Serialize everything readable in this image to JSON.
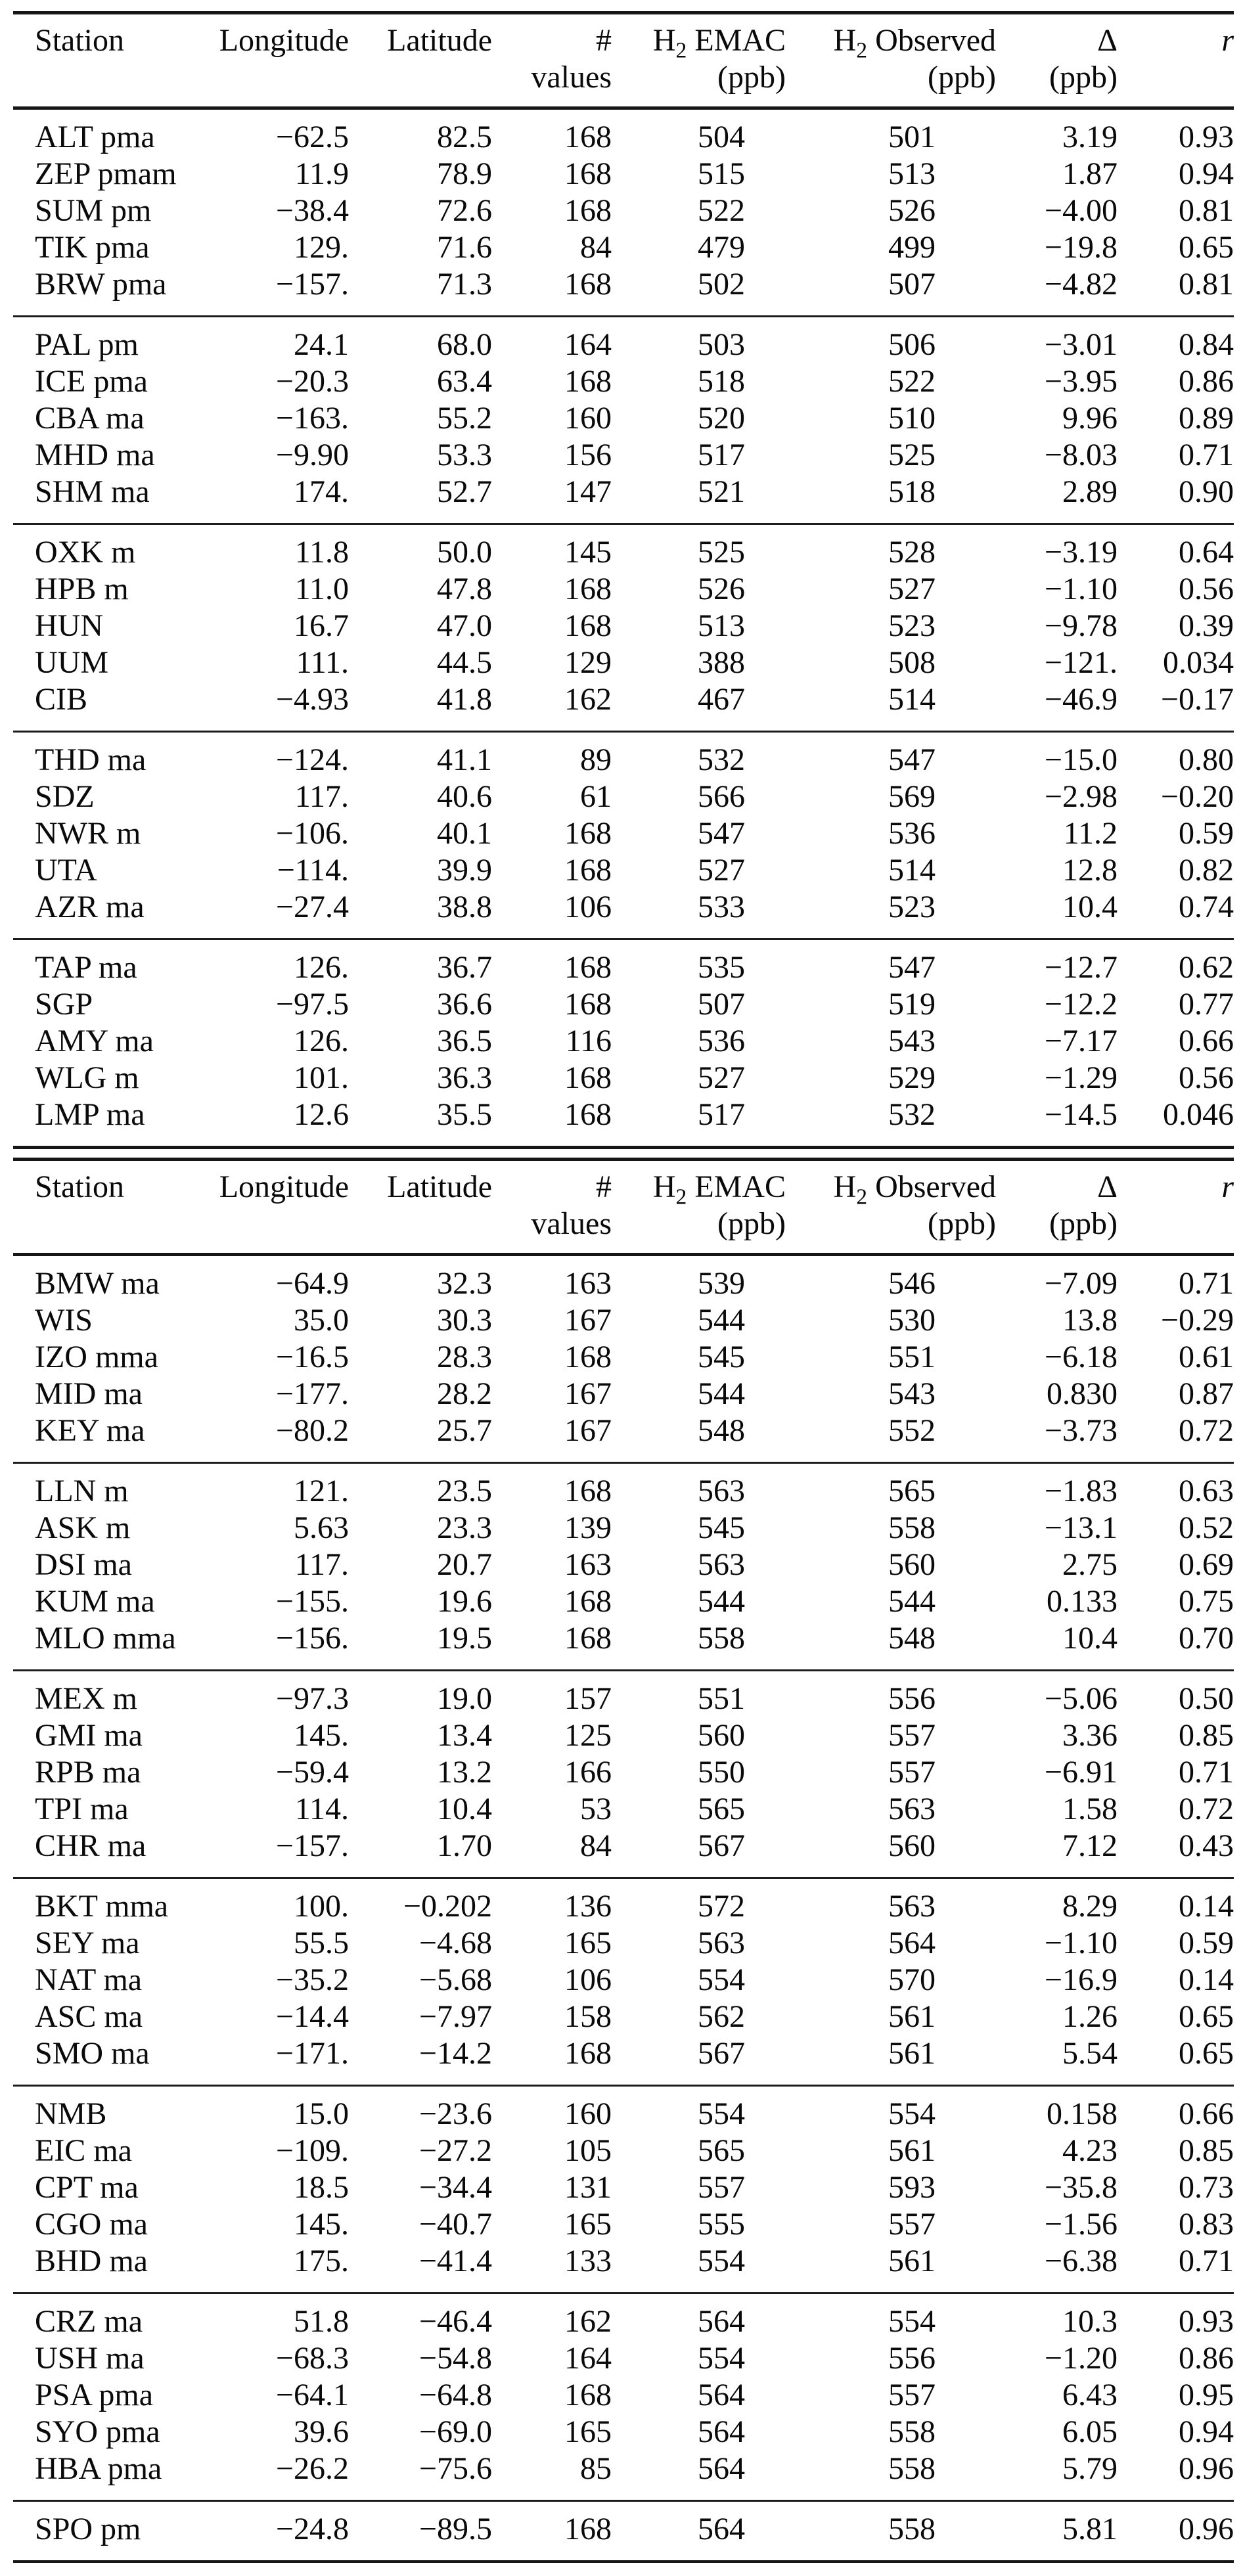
{
  "table": {
    "header": {
      "station": "Station",
      "longitude": "Longitude",
      "latitude": "Latitude",
      "values_hash": "#",
      "values_word": "values",
      "h2": "H",
      "h2_sub": "2",
      "emac": " EMAC",
      "observed": " Observed",
      "ppb": "(ppb)",
      "delta": "Δ",
      "r": "r"
    },
    "part1": {
      "groups": [
        [
          [
            "ALT pma",
            "−62.5",
            "82.5",
            "168",
            "504",
            "501",
            "3.19",
            "0.93"
          ],
          [
            "ZEP pmam",
            "11.9",
            "78.9",
            "168",
            "515",
            "513",
            "1.87",
            "0.94"
          ],
          [
            "SUM pm",
            "−38.4",
            "72.6",
            "168",
            "522",
            "526",
            "−4.00",
            "0.81"
          ],
          [
            "TIK pma",
            "129.",
            "71.6",
            "84",
            "479",
            "499",
            "−19.8",
            "0.65"
          ],
          [
            "BRW pma",
            "−157.",
            "71.3",
            "168",
            "502",
            "507",
            "−4.82",
            "0.81"
          ]
        ],
        [
          [
            "PAL pm",
            "24.1",
            "68.0",
            "164",
            "503",
            "506",
            "−3.01",
            "0.84"
          ],
          [
            "ICE pma",
            "−20.3",
            "63.4",
            "168",
            "518",
            "522",
            "−3.95",
            "0.86"
          ],
          [
            "CBA ma",
            "−163.",
            "55.2",
            "160",
            "520",
            "510",
            "9.96",
            "0.89"
          ],
          [
            "MHD ma",
            "−9.90",
            "53.3",
            "156",
            "517",
            "525",
            "−8.03",
            "0.71"
          ],
          [
            "SHM ma",
            "174.",
            "52.7",
            "147",
            "521",
            "518",
            "2.89",
            "0.90"
          ]
        ],
        [
          [
            "OXK m",
            "11.8",
            "50.0",
            "145",
            "525",
            "528",
            "−3.19",
            "0.64"
          ],
          [
            "HPB m",
            "11.0",
            "47.8",
            "168",
            "526",
            "527",
            "−1.10",
            "0.56"
          ],
          [
            "HUN",
            "16.7",
            "47.0",
            "168",
            "513",
            "523",
            "−9.78",
            "0.39"
          ],
          [
            "UUM",
            "111.",
            "44.5",
            "129",
            "388",
            "508",
            "−121.",
            "0.034"
          ],
          [
            "CIB",
            "−4.93",
            "41.8",
            "162",
            "467",
            "514",
            "−46.9",
            "−0.17"
          ]
        ],
        [
          [
            "THD ma",
            "−124.",
            "41.1",
            "89",
            "532",
            "547",
            "−15.0",
            "0.80"
          ],
          [
            "SDZ",
            "117.",
            "40.6",
            "61",
            "566",
            "569",
            "−2.98",
            "−0.20"
          ],
          [
            "NWR m",
            "−106.",
            "40.1",
            "168",
            "547",
            "536",
            "11.2",
            "0.59"
          ],
          [
            "UTA",
            "−114.",
            "39.9",
            "168",
            "527",
            "514",
            "12.8",
            "0.82"
          ],
          [
            "AZR ma",
            "−27.4",
            "38.8",
            "106",
            "533",
            "523",
            "10.4",
            "0.74"
          ]
        ],
        [
          [
            "TAP ma",
            "126.",
            "36.7",
            "168",
            "535",
            "547",
            "−12.7",
            "0.62"
          ],
          [
            "SGP",
            "−97.5",
            "36.6",
            "168",
            "507",
            "519",
            "−12.2",
            "0.77"
          ],
          [
            "AMY ma",
            "126.",
            "36.5",
            "116",
            "536",
            "543",
            "−7.17",
            "0.66"
          ],
          [
            "WLG m",
            "101.",
            "36.3",
            "168",
            "527",
            "529",
            "−1.29",
            "0.56"
          ],
          [
            "LMP ma",
            "12.6",
            "35.5",
            "168",
            "517",
            "532",
            "−14.5",
            "0.046"
          ]
        ]
      ]
    },
    "part2": {
      "groups": [
        [
          [
            "BMW ma",
            "−64.9",
            "32.3",
            "163",
            "539",
            "546",
            "−7.09",
            "0.71"
          ],
          [
            "WIS",
            "35.0",
            "30.3",
            "167",
            "544",
            "530",
            "13.8",
            "−0.29"
          ],
          [
            "IZO mma",
            "−16.5",
            "28.3",
            "168",
            "545",
            "551",
            "−6.18",
            "0.61"
          ],
          [
            "MID ma",
            "−177.",
            "28.2",
            "167",
            "544",
            "543",
            "0.830",
            "0.87"
          ],
          [
            "KEY ma",
            "−80.2",
            "25.7",
            "167",
            "548",
            "552",
            "−3.73",
            "0.72"
          ]
        ],
        [
          [
            "LLN m",
            "121.",
            "23.5",
            "168",
            "563",
            "565",
            "−1.83",
            "0.63"
          ],
          [
            "ASK m",
            "5.63",
            "23.3",
            "139",
            "545",
            "558",
            "−13.1",
            "0.52"
          ],
          [
            "DSI ma",
            "117.",
            "20.7",
            "163",
            "563",
            "560",
            "2.75",
            "0.69"
          ],
          [
            "KUM ma",
            "−155.",
            "19.6",
            "168",
            "544",
            "544",
            "0.133",
            "0.75"
          ],
          [
            "MLO mma",
            "−156.",
            "19.5",
            "168",
            "558",
            "548",
            "10.4",
            "0.70"
          ]
        ],
        [
          [
            "MEX m",
            "−97.3",
            "19.0",
            "157",
            "551",
            "556",
            "−5.06",
            "0.50"
          ],
          [
            "GMI ma",
            "145.",
            "13.4",
            "125",
            "560",
            "557",
            "3.36",
            "0.85"
          ],
          [
            "RPB ma",
            "−59.4",
            "13.2",
            "166",
            "550",
            "557",
            "−6.91",
            "0.71"
          ],
          [
            "TPI ma",
            "114.",
            "10.4",
            "53",
            "565",
            "563",
            "1.58",
            "0.72"
          ],
          [
            "CHR ma",
            "−157.",
            "1.70",
            "84",
            "567",
            "560",
            "7.12",
            "0.43"
          ]
        ],
        [
          [
            "BKT mma",
            "100.",
            "−0.202",
            "136",
            "572",
            "563",
            "8.29",
            "0.14"
          ],
          [
            "SEY ma",
            "55.5",
            "−4.68",
            "165",
            "563",
            "564",
            "−1.10",
            "0.59"
          ],
          [
            "NAT ma",
            "−35.2",
            "−5.68",
            "106",
            "554",
            "570",
            "−16.9",
            "0.14"
          ],
          [
            "ASC ma",
            "−14.4",
            "−7.97",
            "158",
            "562",
            "561",
            "1.26",
            "0.65"
          ],
          [
            "SMO ma",
            "−171.",
            "−14.2",
            "168",
            "567",
            "561",
            "5.54",
            "0.65"
          ]
        ],
        [
          [
            "NMB",
            "15.0",
            "−23.6",
            "160",
            "554",
            "554",
            "0.158",
            "0.66"
          ],
          [
            "EIC ma",
            "−109.",
            "−27.2",
            "105",
            "565",
            "561",
            "4.23",
            "0.85"
          ],
          [
            "CPT ma",
            "18.5",
            "−34.4",
            "131",
            "557",
            "593",
            "−35.8",
            "0.73"
          ],
          [
            "CGO ma",
            "145.",
            "−40.7",
            "165",
            "555",
            "557",
            "−1.56",
            "0.83"
          ],
          [
            "BHD ma",
            "175.",
            "−41.4",
            "133",
            "554",
            "561",
            "−6.38",
            "0.71"
          ]
        ],
        [
          [
            "CRZ ma",
            "51.8",
            "−46.4",
            "162",
            "564",
            "554",
            "10.3",
            "0.93"
          ],
          [
            "USH ma",
            "−68.3",
            "−54.8",
            "164",
            "554",
            "556",
            "−1.20",
            "0.86"
          ],
          [
            "PSA pma",
            "−64.1",
            "−64.8",
            "168",
            "564",
            "557",
            "6.43",
            "0.95"
          ],
          [
            "SYO pma",
            "39.6",
            "−69.0",
            "165",
            "564",
            "558",
            "6.05",
            "0.94"
          ],
          [
            "HBA pma",
            "−26.2",
            "−75.6",
            "85",
            "564",
            "558",
            "5.79",
            "0.96"
          ]
        ],
        [
          [
            "SPO pm",
            "−24.8",
            "−89.5",
            "168",
            "564",
            "558",
            "5.81",
            "0.96"
          ]
        ]
      ]
    }
  }
}
